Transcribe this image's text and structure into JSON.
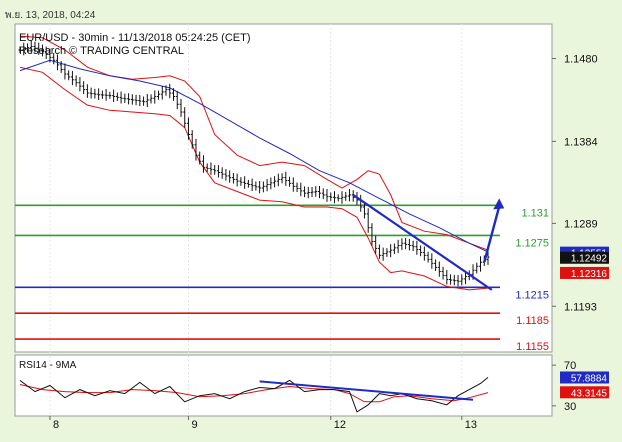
{
  "header": {
    "date_time": "พ.ย. 13, 2018, 04:24"
  },
  "chart_data": {
    "type": "line",
    "title": "EUR/USD - 30min - 11/13/2018 05:24:25 (CET)",
    "subtitle": "Research © TRADING CENTRAL",
    "price_axis": {
      "ylim": [
        1.114,
        1.152
      ],
      "ticks": [
        1.148,
        1.1384,
        1.1289,
        1.1193
      ],
      "tick_labels": [
        "1.1480",
        "1.1384",
        "1.1289",
        "1.1193"
      ]
    },
    "x_ticks": [
      {
        "label": "8",
        "i": 8
      },
      {
        "label": "9",
        "i": 45
      },
      {
        "label": "12",
        "i": 83
      },
      {
        "label": "13",
        "i": 118
      }
    ],
    "n_bars": 126,
    "price_series": [
      {
        "i": 0,
        "v": 1.149
      },
      {
        "i": 3,
        "v": 1.1494
      },
      {
        "i": 6,
        "v": 1.1488
      },
      {
        "i": 9,
        "v": 1.1478
      },
      {
        "i": 12,
        "v": 1.1462
      },
      {
        "i": 15,
        "v": 1.1452
      },
      {
        "i": 18,
        "v": 1.144
      },
      {
        "i": 21,
        "v": 1.1438
      },
      {
        "i": 24,
        "v": 1.1437
      },
      {
        "i": 27,
        "v": 1.1434
      },
      {
        "i": 30,
        "v": 1.1432
      },
      {
        "i": 33,
        "v": 1.143
      },
      {
        "i": 36,
        "v": 1.1436
      },
      {
        "i": 39,
        "v": 1.1444
      },
      {
        "i": 41,
        "v": 1.1436
      },
      {
        "i": 43,
        "v": 1.1418
      },
      {
        "i": 45,
        "v": 1.1392
      },
      {
        "i": 47,
        "v": 1.1368
      },
      {
        "i": 49,
        "v": 1.1354
      },
      {
        "i": 52,
        "v": 1.135
      },
      {
        "i": 55,
        "v": 1.1344
      },
      {
        "i": 58,
        "v": 1.1338
      },
      {
        "i": 61,
        "v": 1.1334
      },
      {
        "i": 64,
        "v": 1.133
      },
      {
        "i": 67,
        "v": 1.1336
      },
      {
        "i": 70,
        "v": 1.1342
      },
      {
        "i": 73,
        "v": 1.1332
      },
      {
        "i": 76,
        "v": 1.1324
      },
      {
        "i": 79,
        "v": 1.1326
      },
      {
        "i": 82,
        "v": 1.132
      },
      {
        "i": 85,
        "v": 1.1318
      },
      {
        "i": 88,
        "v": 1.1322
      },
      {
        "i": 90,
        "v": 1.1316
      },
      {
        "i": 92,
        "v": 1.13
      },
      {
        "i": 94,
        "v": 1.1268
      },
      {
        "i": 96,
        "v": 1.1252
      },
      {
        "i": 99,
        "v": 1.1258
      },
      {
        "i": 102,
        "v": 1.1266
      },
      {
        "i": 105,
        "v": 1.1262
      },
      {
        "i": 108,
        "v": 1.1252
      },
      {
        "i": 111,
        "v": 1.1238
      },
      {
        "i": 114,
        "v": 1.1224
      },
      {
        "i": 117,
        "v": 1.1222
      },
      {
        "i": 120,
        "v": 1.123
      },
      {
        "i": 123,
        "v": 1.1244
      },
      {
        "i": 125,
        "v": 1.125
      }
    ],
    "moving_average": [
      {
        "i": 0,
        "v": 1.1466
      },
      {
        "i": 8,
        "v": 1.1478
      },
      {
        "i": 16,
        "v": 1.1468
      },
      {
        "i": 24,
        "v": 1.146
      },
      {
        "i": 32,
        "v": 1.1454
      },
      {
        "i": 40,
        "v": 1.1446
      },
      {
        "i": 48,
        "v": 1.1428
      },
      {
        "i": 56,
        "v": 1.1408
      },
      {
        "i": 64,
        "v": 1.1388
      },
      {
        "i": 72,
        "v": 1.137
      },
      {
        "i": 80,
        "v": 1.135
      },
      {
        "i": 88,
        "v": 1.1336
      },
      {
        "i": 96,
        "v": 1.1318
      },
      {
        "i": 104,
        "v": 1.13
      },
      {
        "i": 112,
        "v": 1.1284
      },
      {
        "i": 120,
        "v": 1.1266
      },
      {
        "i": 125,
        "v": 1.1256
      }
    ],
    "bollinger_upper": [
      {
        "i": 0,
        "v": 1.1506
      },
      {
        "i": 6,
        "v": 1.1504
      },
      {
        "i": 12,
        "v": 1.149
      },
      {
        "i": 18,
        "v": 1.147
      },
      {
        "i": 24,
        "v": 1.146
      },
      {
        "i": 30,
        "v": 1.1456
      },
      {
        "i": 36,
        "v": 1.1458
      },
      {
        "i": 40,
        "v": 1.146
      },
      {
        "i": 44,
        "v": 1.1454
      },
      {
        "i": 48,
        "v": 1.1436
      },
      {
        "i": 52,
        "v": 1.1392
      },
      {
        "i": 58,
        "v": 1.1368
      },
      {
        "i": 64,
        "v": 1.1356
      },
      {
        "i": 70,
        "v": 1.136
      },
      {
        "i": 76,
        "v": 1.1356
      },
      {
        "i": 82,
        "v": 1.134
      },
      {
        "i": 86,
        "v": 1.133
      },
      {
        "i": 90,
        "v": 1.134
      },
      {
        "i": 93,
        "v": 1.135
      },
      {
        "i": 96,
        "v": 1.1346
      },
      {
        "i": 99,
        "v": 1.1322
      },
      {
        "i": 102,
        "v": 1.129
      },
      {
        "i": 108,
        "v": 1.128
      },
      {
        "i": 114,
        "v": 1.1276
      },
      {
        "i": 120,
        "v": 1.1266
      },
      {
        "i": 125,
        "v": 1.1258
      }
    ],
    "bollinger_lower": [
      {
        "i": 0,
        "v": 1.147
      },
      {
        "i": 6,
        "v": 1.1464
      },
      {
        "i": 12,
        "v": 1.1444
      },
      {
        "i": 18,
        "v": 1.1426
      },
      {
        "i": 24,
        "v": 1.142
      },
      {
        "i": 30,
        "v": 1.1418
      },
      {
        "i": 36,
        "v": 1.1416
      },
      {
        "i": 40,
        "v": 1.1414
      },
      {
        "i": 44,
        "v": 1.14
      },
      {
        "i": 48,
        "v": 1.136
      },
      {
        "i": 52,
        "v": 1.1336
      },
      {
        "i": 58,
        "v": 1.1326
      },
      {
        "i": 64,
        "v": 1.1316
      },
      {
        "i": 70,
        "v": 1.1314
      },
      {
        "i": 76,
        "v": 1.1308
      },
      {
        "i": 82,
        "v": 1.1308
      },
      {
        "i": 86,
        "v": 1.1306
      },
      {
        "i": 90,
        "v": 1.1296
      },
      {
        "i": 93,
        "v": 1.1272
      },
      {
        "i": 96,
        "v": 1.1244
      },
      {
        "i": 99,
        "v": 1.1232
      },
      {
        "i": 102,
        "v": 1.1234
      },
      {
        "i": 108,
        "v": 1.1228
      },
      {
        "i": 114,
        "v": 1.1216
      },
      {
        "i": 120,
        "v": 1.1212
      },
      {
        "i": 125,
        "v": 1.1214
      }
    ],
    "levels": [
      {
        "value": 1.131,
        "label": "1.131",
        "color": "#2aa02a"
      },
      {
        "value": 1.1275,
        "label": "1.1275",
        "color": "#2aa02a"
      },
      {
        "value": 1.1215,
        "label": "1.1215",
        "color": "#1f2bc2"
      },
      {
        "value": 1.1185,
        "label": "1.1185",
        "color": "#e01010"
      },
      {
        "value": 1.1155,
        "label": "1.1155",
        "color": "#e01010"
      }
    ],
    "price_tags": [
      {
        "value": 1.12551,
        "label": "1.12551",
        "bg": "#1f2bc2"
      },
      {
        "value": 1.12492,
        "label": "1.12492",
        "bg": "#111111"
      },
      {
        "value": 1.12316,
        "label": "1.12316",
        "bg": "#e01010"
      }
    ],
    "trendline": {
      "i1": 89,
      "v1": 1.1322,
      "i2": 126,
      "v2": 1.1212
    },
    "forecast_arrow": {
      "i1": 124,
      "v1": 1.1244,
      "i2": 128,
      "v2": 1.1318
    },
    "rsi": {
      "label": "RSI14 - 9MA",
      "ylim": [
        20,
        80
      ],
      "ticks": [
        70,
        30
      ],
      "tick_labels": [
        "70",
        "30"
      ],
      "rsi_tag": {
        "value": 57.8884,
        "label": "57.8884"
      },
      "ma_tag": {
        "value": 43.3145,
        "label": "43.3145"
      },
      "rsi_series": [
        {
          "i": 0,
          "v": 55
        },
        {
          "i": 4,
          "v": 44
        },
        {
          "i": 8,
          "v": 50
        },
        {
          "i": 12,
          "v": 38
        },
        {
          "i": 16,
          "v": 46
        },
        {
          "i": 20,
          "v": 40
        },
        {
          "i": 24,
          "v": 45
        },
        {
          "i": 28,
          "v": 42
        },
        {
          "i": 32,
          "v": 53
        },
        {
          "i": 36,
          "v": 42
        },
        {
          "i": 40,
          "v": 49
        },
        {
          "i": 44,
          "v": 34
        },
        {
          "i": 48,
          "v": 40
        },
        {
          "i": 52,
          "v": 42
        },
        {
          "i": 56,
          "v": 37
        },
        {
          "i": 60,
          "v": 44
        },
        {
          "i": 64,
          "v": 48
        },
        {
          "i": 68,
          "v": 47
        },
        {
          "i": 72,
          "v": 55
        },
        {
          "i": 76,
          "v": 44
        },
        {
          "i": 80,
          "v": 46
        },
        {
          "i": 84,
          "v": 46
        },
        {
          "i": 88,
          "v": 44
        },
        {
          "i": 90,
          "v": 24
        },
        {
          "i": 93,
          "v": 31
        },
        {
          "i": 96,
          "v": 42
        },
        {
          "i": 99,
          "v": 40
        },
        {
          "i": 102,
          "v": 42
        },
        {
          "i": 106,
          "v": 37
        },
        {
          "i": 110,
          "v": 35
        },
        {
          "i": 114,
          "v": 31
        },
        {
          "i": 117,
          "v": 40
        },
        {
          "i": 120,
          "v": 46
        },
        {
          "i": 123,
          "v": 52
        },
        {
          "i": 125,
          "v": 58
        }
      ],
      "ma_series": [
        {
          "i": 0,
          "v": 51
        },
        {
          "i": 6,
          "v": 46
        },
        {
          "i": 12,
          "v": 44
        },
        {
          "i": 18,
          "v": 43
        },
        {
          "i": 24,
          "v": 43
        },
        {
          "i": 30,
          "v": 46
        },
        {
          "i": 36,
          "v": 45
        },
        {
          "i": 42,
          "v": 43
        },
        {
          "i": 48,
          "v": 39
        },
        {
          "i": 54,
          "v": 40
        },
        {
          "i": 60,
          "v": 42
        },
        {
          "i": 66,
          "v": 46
        },
        {
          "i": 72,
          "v": 49
        },
        {
          "i": 78,
          "v": 47
        },
        {
          "i": 84,
          "v": 46
        },
        {
          "i": 88,
          "v": 42
        },
        {
          "i": 92,
          "v": 34
        },
        {
          "i": 96,
          "v": 34
        },
        {
          "i": 100,
          "v": 39
        },
        {
          "i": 104,
          "v": 40
        },
        {
          "i": 110,
          "v": 37
        },
        {
          "i": 116,
          "v": 35
        },
        {
          "i": 120,
          "v": 38
        },
        {
          "i": 125,
          "v": 43
        }
      ],
      "trendline": {
        "i1": 64,
        "v1": 54,
        "i2": 121,
        "v2": 36
      }
    },
    "colors": {
      "price": "#111111",
      "ma": "#1f2bc2",
      "bollinger": "#e01010",
      "trendline": "#1f2bc2",
      "background": "#ffffff",
      "frame": "#eaf6dc"
    }
  }
}
